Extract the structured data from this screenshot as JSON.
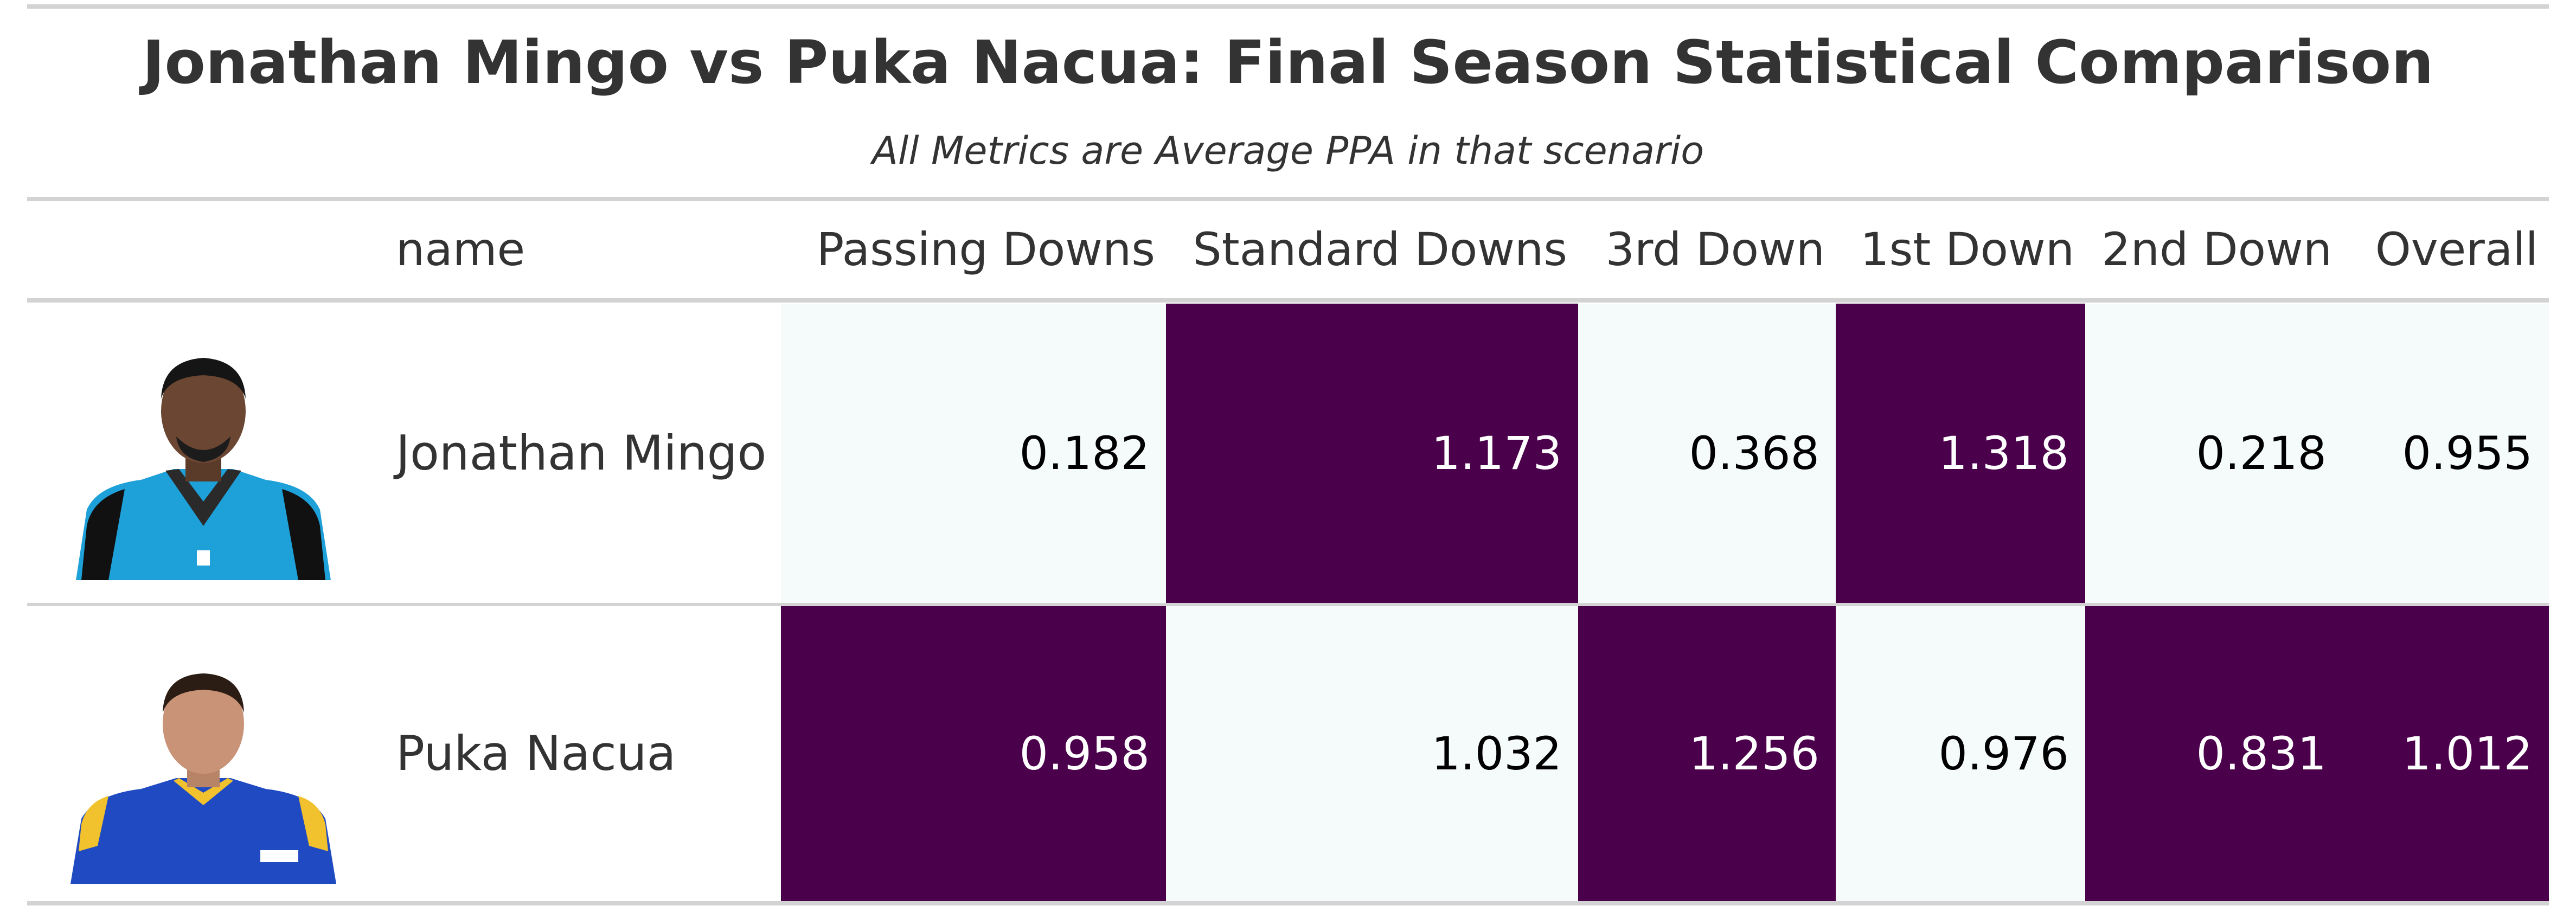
{
  "chart_data": {
    "type": "table",
    "title": "Jonathan Mingo vs Puka Nacua: Final Season Statistical Comparison",
    "subtitle": "All Metrics are Average PPA in that scenario",
    "columns": [
      "name",
      "Passing Downs",
      "Standard Downs",
      "3rd Down",
      "1st Down",
      "2nd Down",
      "Overall"
    ],
    "rows": [
      {
        "name": "Jonathan Mingo",
        "photo_icon": "player-headshot-panthers-icon",
        "values": [
          "0.182",
          "1.173",
          "0.368",
          "1.318",
          "0.218",
          "0.955"
        ],
        "highlight": [
          false,
          true,
          false,
          true,
          false,
          false
        ]
      },
      {
        "name": "Puka Nacua",
        "photo_icon": "player-headshot-rams-icon",
        "values": [
          "0.958",
          "1.032",
          "1.256",
          "0.976",
          "0.831",
          "1.012"
        ],
        "highlight": [
          true,
          false,
          true,
          false,
          true,
          true
        ]
      }
    ],
    "colors": {
      "high": "#4a004a",
      "low": "#f5fbfb",
      "high_text": "#ffffff",
      "low_text": "#000000"
    }
  }
}
